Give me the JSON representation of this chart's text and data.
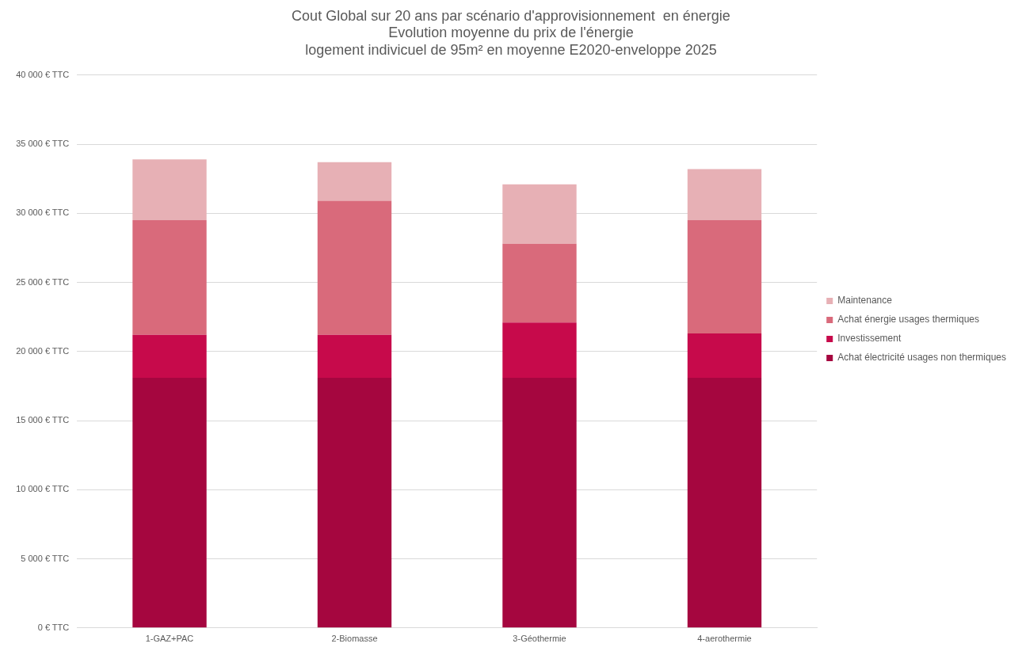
{
  "chart_data": {
    "type": "bar",
    "title": "Cout Global sur 20 ans par scénario d'approvisionnement  en énergie\nEvolution moyenne du prix de l'énergie\nlogement indivicuel de 95m² en moyenne E2020-enveloppe 2025",
    "categories": [
      "1-GAZ+PAC",
      "2-Biomasse",
      "3-Géothermie",
      "4-aerothermie"
    ],
    "stacked": true,
    "series": [
      {
        "name": "Achat électricité usages non thermiques",
        "color": "#a5063f",
        "values": [
          18100,
          18100,
          18100,
          18100
        ]
      },
      {
        "name": "Investissement",
        "color": "#c70a4b",
        "values": [
          3100,
          3100,
          4000,
          3200
        ]
      },
      {
        "name": "Achat énergie usages thermiques",
        "color": "#d96a7b",
        "values": [
          8300,
          9700,
          5700,
          8200
        ]
      },
      {
        "name": "Maintenance",
        "color": "#e7b0b5",
        "values": [
          4400,
          2800,
          4300,
          3700
        ]
      }
    ],
    "ylim": [
      0,
      40000
    ],
    "yticks": [
      {
        "value": 0,
        "label": "0 € TTC"
      },
      {
        "value": 5000,
        "label": "5 000 € TTC"
      },
      {
        "value": 10000,
        "label": "10 000 € TTC"
      },
      {
        "value": 15000,
        "label": "15 000 € TTC"
      },
      {
        "value": 20000,
        "label": "20 000 € TTC"
      },
      {
        "value": 25000,
        "label": "25 000 € TTC"
      },
      {
        "value": 30000,
        "label": "30 000 € TTC"
      },
      {
        "value": 35000,
        "label": "35 000 € TTC"
      },
      {
        "value": 40000,
        "label": "40 000 € TTC"
      }
    ],
    "grid": "y",
    "legend": "right"
  }
}
